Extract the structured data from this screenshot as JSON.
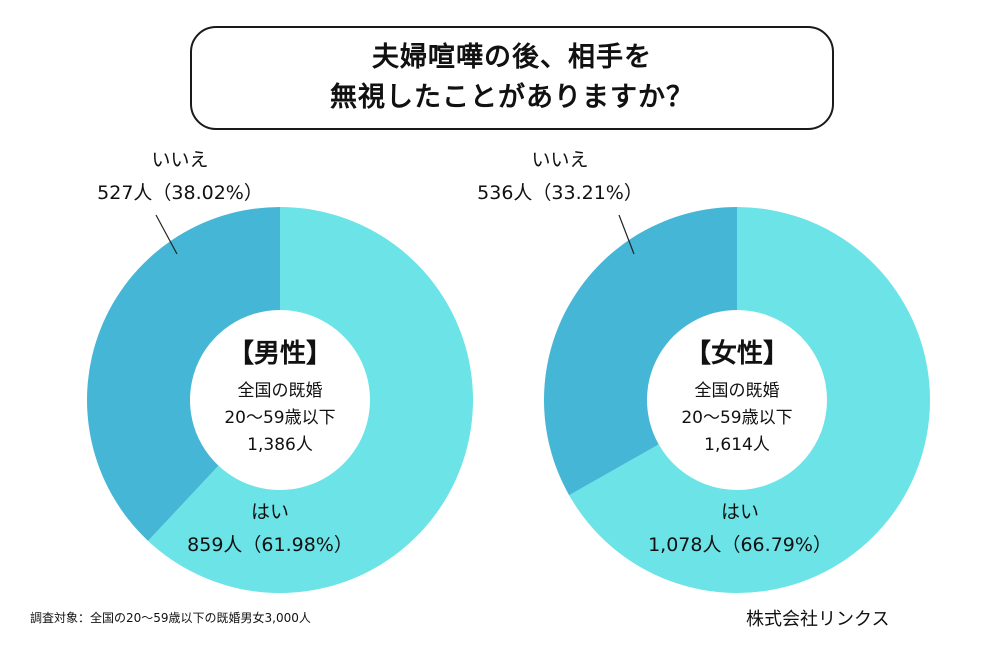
{
  "title": {
    "line1": "夫婦喧嘩の後、相手を",
    "line2": "無視したことがありますか？"
  },
  "colors": {
    "yes": "#6be3e7",
    "no": "#46b6d6",
    "text": "#111111"
  },
  "chart_data": [
    {
      "type": "pie",
      "center_title": "【男性】",
      "center_lines": [
        "全国の既婚",
        "20〜59歳以下",
        "1,386人"
      ],
      "categories": [
        "はい",
        "いいえ"
      ],
      "counts": [
        "859人",
        "527人"
      ],
      "percent_labels": [
        "（61.98%）",
        "（38.02%）"
      ],
      "values": [
        61.98,
        38.02
      ]
    },
    {
      "type": "pie",
      "center_title": "【女性】",
      "center_lines": [
        "全国の既婚",
        "20〜59歳以下",
        "1,614人"
      ],
      "categories": [
        "はい",
        "いいえ"
      ],
      "counts": [
        "1,078人",
        "536人"
      ],
      "percent_labels": [
        "（66.79%）",
        "（33.21%）"
      ],
      "values": [
        66.79,
        33.21
      ]
    }
  ],
  "footer": {
    "note": "調査対象：全国の20〜59歳以下の既婚男女3,000人",
    "company": "株式会社リンクス"
  }
}
